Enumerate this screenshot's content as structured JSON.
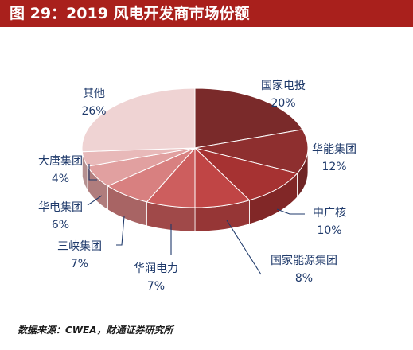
{
  "figure": {
    "title": "图 29：2019 风电开发商市场份额",
    "source": "数据来源：CWEA，财通证券研究所"
  },
  "chart_data": {
    "type": "pie",
    "style": "3d-exploded",
    "slices": [
      {
        "label": "国家电投",
        "value": 20,
        "value_label": "20%",
        "color": "#7a2a2a"
      },
      {
        "label": "华能集团",
        "value": 12,
        "value_label": "12%",
        "color": "#8e2f2f"
      },
      {
        "label": "中广核",
        "value": 10,
        "value_label": "10%",
        "color": "#a63232"
      },
      {
        "label": "国家能源集团",
        "value": 8,
        "value_label": "8%",
        "color": "#c04545"
      },
      {
        "label": "华润电力",
        "value": 7,
        "value_label": "7%",
        "color": "#cd5e5e"
      },
      {
        "label": "三峡集团",
        "value": 7,
        "value_label": "7%",
        "color": "#d88080"
      },
      {
        "label": "华电集团",
        "value": 6,
        "value_label": "6%",
        "color": "#e1a0a0"
      },
      {
        "label": "大唐集团",
        "value": 4,
        "value_label": "4%",
        "color": "#e8b9b9"
      },
      {
        "label": "其他",
        "value": 26,
        "value_label": "26%",
        "color": "#efd3d3"
      }
    ],
    "start_angle": "12 o'clock",
    "direction": "clockwise"
  }
}
